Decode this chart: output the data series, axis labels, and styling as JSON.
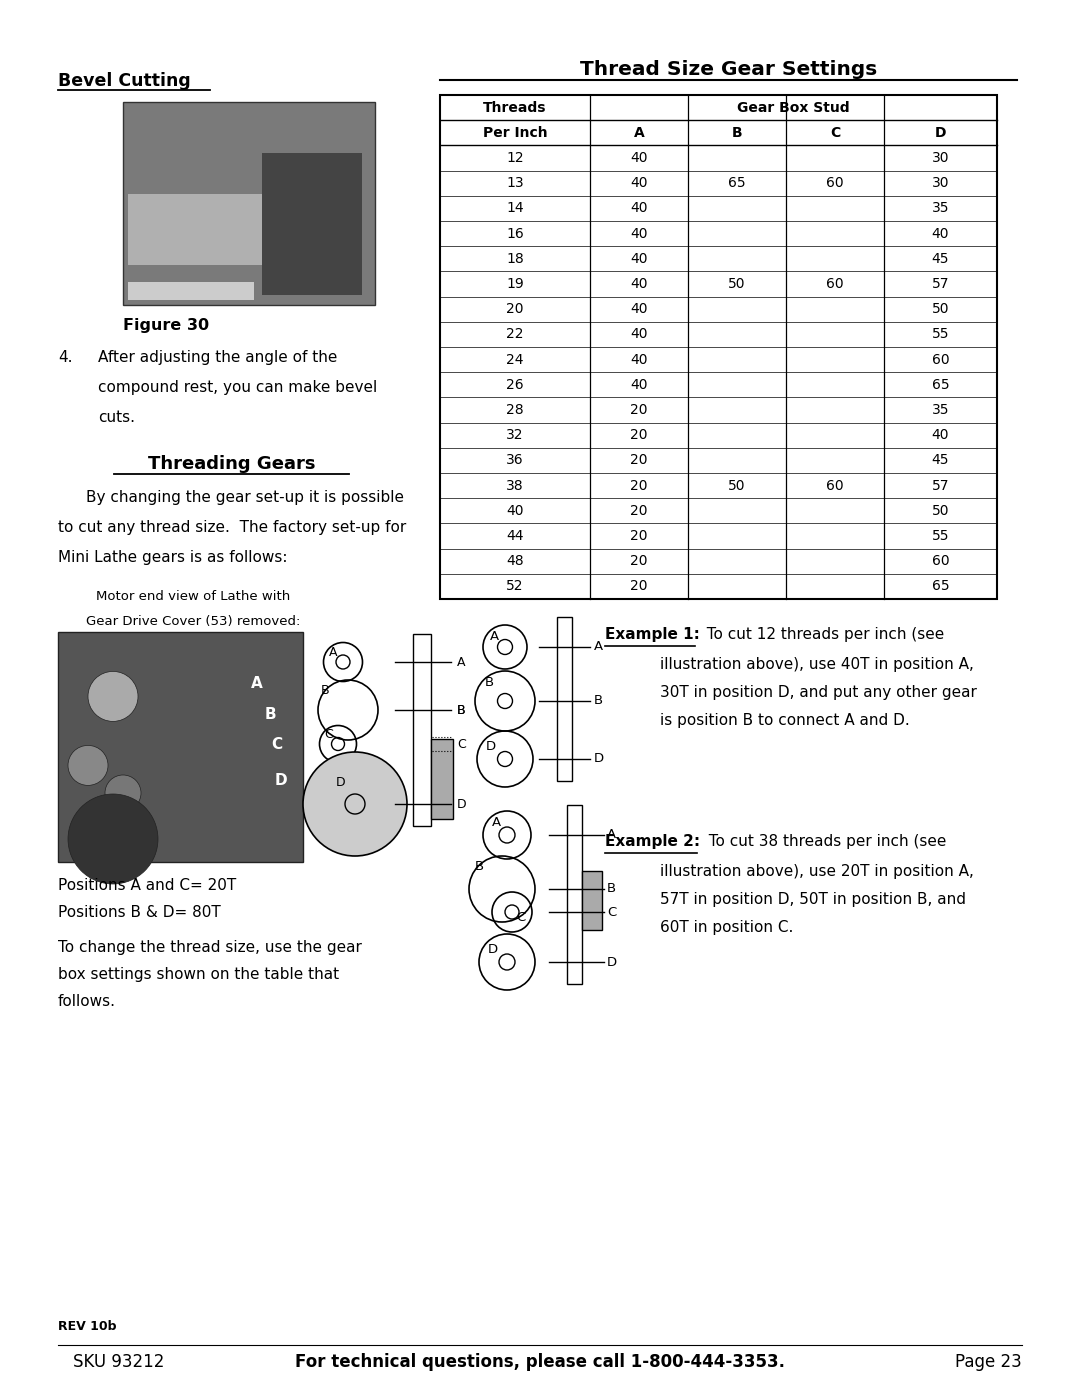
{
  "page_width": 10.8,
  "page_height": 13.97,
  "bg_color": "#ffffff",
  "bevel_cutting_title": "Bevel Cutting",
  "figure30_caption": "Figure 30",
  "bevel_item4_text_line1": "After adjusting the angle of the",
  "bevel_item4_text_line2": "compound rest, you can make bevel",
  "bevel_item4_text_line3": "cuts.",
  "threading_gears_title": "Threading Gears",
  "threading_intro_line1": "By changing the gear set-up it is possible",
  "threading_intro_line2": "to cut any thread size.  The factory set-up for",
  "threading_intro_line3": "Mini Lathe gears is as follows:",
  "motor_end_caption_line1": "Motor end view of Lathe with",
  "motor_end_caption_line2": "Gear Drive Cover (53) removed:",
  "positions_text_line1": "Positions A and C= 20T",
  "positions_text_line2": "Positions B & D= 80T",
  "to_change_line1": "To change the thread size, use the gear",
  "to_change_line2": "box settings shown on the table that",
  "to_change_line3": "follows.",
  "thread_table_title": "Thread Size Gear Settings",
  "table_data": [
    [
      12,
      40,
      "",
      "",
      30
    ],
    [
      13,
      40,
      65,
      60,
      30
    ],
    [
      14,
      40,
      "",
      "",
      35
    ],
    [
      16,
      40,
      "",
      "",
      40
    ],
    [
      18,
      40,
      "",
      "",
      45
    ],
    [
      19,
      40,
      50,
      60,
      57
    ],
    [
      20,
      40,
      "",
      "",
      50
    ],
    [
      22,
      40,
      "",
      "",
      55
    ],
    [
      24,
      40,
      "",
      "",
      60
    ],
    [
      26,
      40,
      "",
      "",
      65
    ],
    [
      28,
      20,
      "",
      "",
      35
    ],
    [
      32,
      20,
      "",
      "",
      40
    ],
    [
      36,
      20,
      "",
      "",
      45
    ],
    [
      38,
      20,
      50,
      60,
      57
    ],
    [
      40,
      20,
      "",
      "",
      50
    ],
    [
      44,
      20,
      "",
      "",
      55
    ],
    [
      48,
      20,
      "",
      "",
      60
    ],
    [
      52,
      20,
      "",
      "",
      65
    ]
  ],
  "example1_bold": "Example 1:",
  "example1_text_line1": "  To cut 12 threads per inch (see",
  "example1_text_line2": "illustration above), use 40T in position A,",
  "example1_text_line3": "30T in position D, and put any other gear",
  "example1_text_line4": "is position B to connect A and D.",
  "example2_bold": "Example 2:",
  "example2_text_line1": "  To cut 38 threads per inch (see",
  "example2_text_line2": "illustration above), use 20T in position A,",
  "example2_text_line3": "57T in position D, 50T in position B, and",
  "example2_text_line4": "60T in position C.",
  "footer_rev": "REV 10b",
  "footer_sku": "SKU 93212",
  "footer_contact": "For technical questions, please call 1-800-444-3353.",
  "footer_page": "Page 23"
}
